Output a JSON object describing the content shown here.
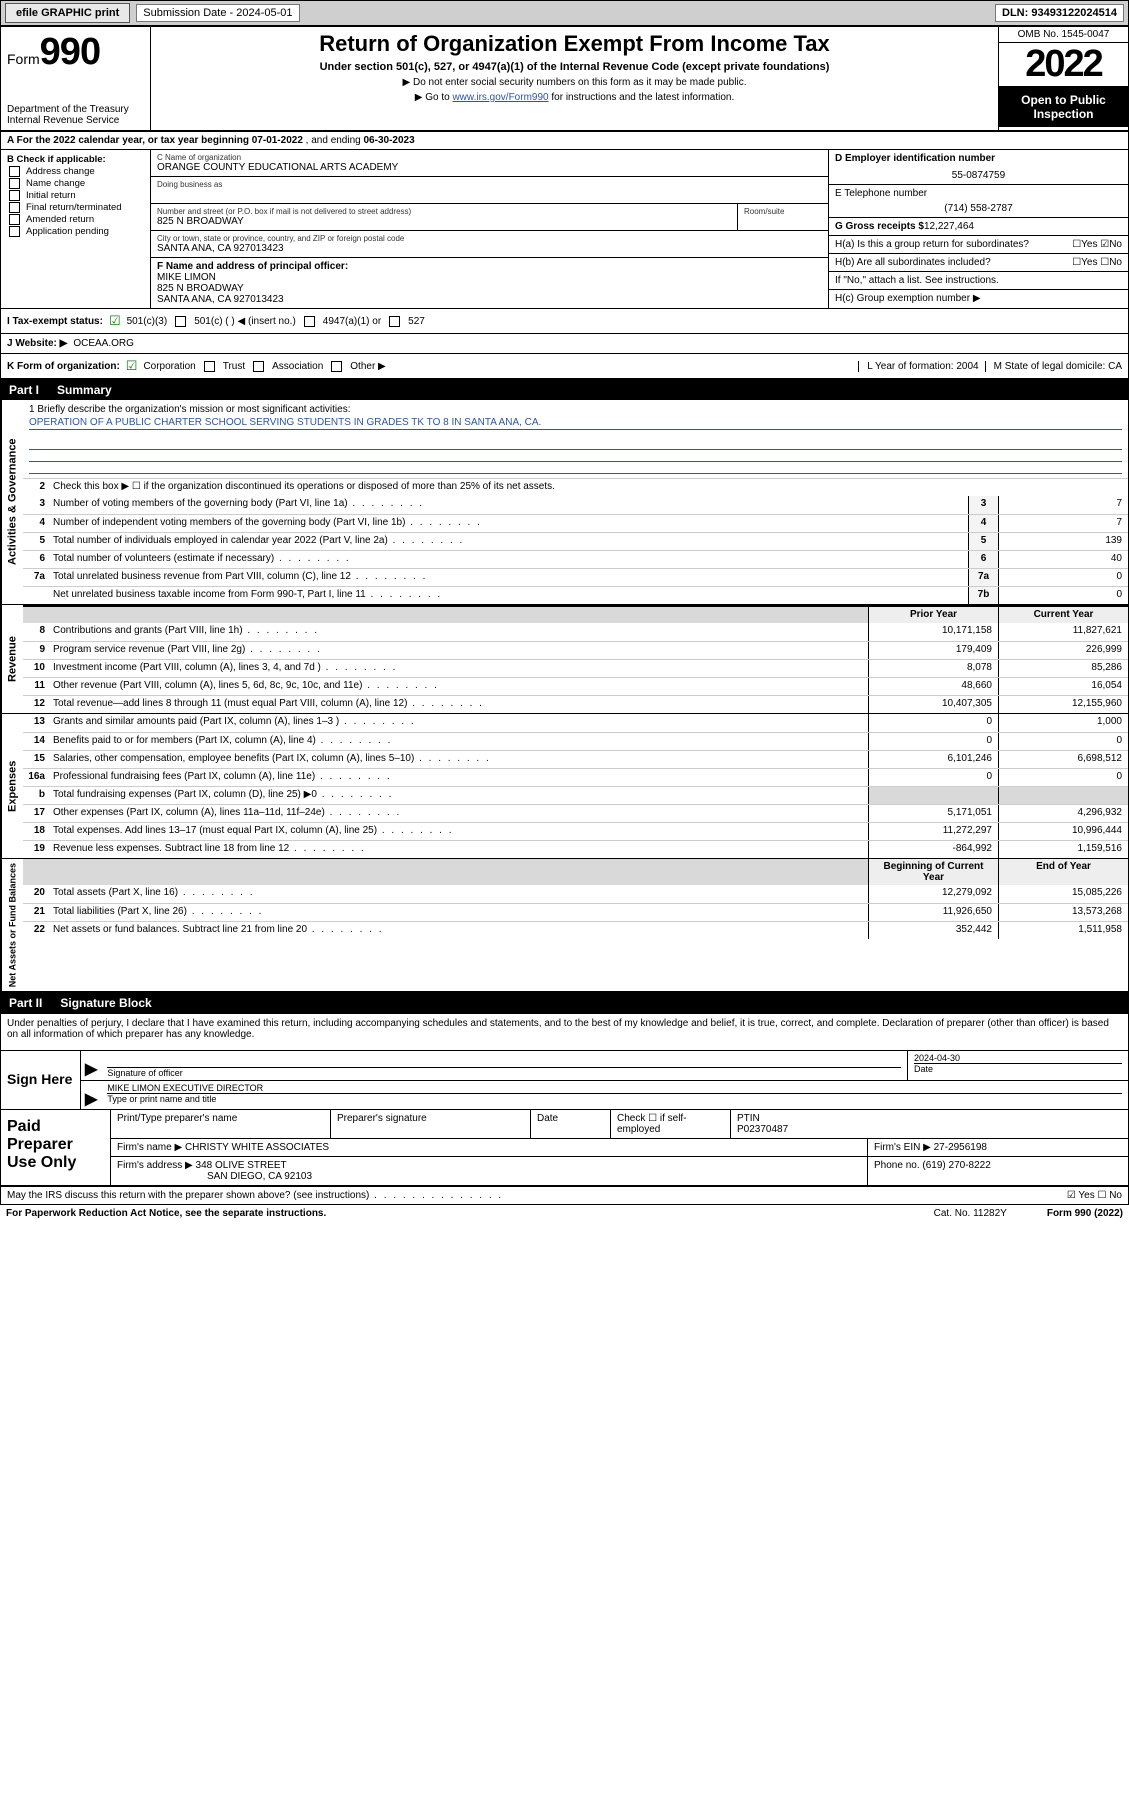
{
  "topbar": {
    "efile": "efile GRAPHIC print",
    "sub_label": "Submission Date - 2024-05-01",
    "dln": "DLN: 93493122024514"
  },
  "hdr": {
    "form_small": "Form",
    "form_big": "990",
    "dept": "Department of the Treasury",
    "irs": "Internal Revenue Service",
    "title": "Return of Organization Exempt From Income Tax",
    "sub": "Under section 501(c), 527, or 4947(a)(1) of the Internal Revenue Code (except private foundations)",
    "note1": "▶ Do not enter social security numbers on this form as it may be made public.",
    "note2_pre": "▶ Go to ",
    "note2_link": "www.irs.gov/Form990",
    "note2_post": " for instructions and the latest information.",
    "omb": "OMB No. 1545-0047",
    "year": "2022",
    "open": "Open to Public Inspection"
  },
  "rowA": {
    "text_pre": "A For the 2022 calendar year, or tax year beginning ",
    "d1": "07-01-2022",
    "mid": " , and ending ",
    "d2": "06-30-2023"
  },
  "colB": {
    "hdr": "B Check if applicable:",
    "items": [
      "Address change",
      "Name change",
      "Initial return",
      "Final return/terminated",
      "Amended return",
      "Application pending"
    ]
  },
  "colC": {
    "c_lbl": "C Name of organization",
    "c_val": "ORANGE COUNTY EDUCATIONAL ARTS ACADEMY",
    "dba_lbl": "Doing business as",
    "addr_lbl": "Number and street (or P.O. box if mail is not delivered to street address)",
    "room_lbl": "Room/suite",
    "addr_val": "825 N BROADWAY",
    "city_lbl": "City or town, state or province, country, and ZIP or foreign postal code",
    "city_val": "SANTA ANA, CA  927013423",
    "f_lbl": "F Name and address of principal officer:",
    "f_name": "MIKE LIMON",
    "f_addr1": "825 N BROADWAY",
    "f_addr2": "SANTA ANA, CA  927013423"
  },
  "colR": {
    "d_lbl": "D Employer identification number",
    "d_val": "55-0874759",
    "e_lbl": "E Telephone number",
    "e_val": "(714) 558-2787",
    "g_lbl": "G Gross receipts $",
    "g_val": "12,227,464",
    "ha_lbl": "H(a)  Is this a group return for subordinates?",
    "ha_yn": "☐Yes ☑No",
    "hb_lbl": "H(b)  Are all subordinates included?",
    "hb_yn": "☐Yes ☐No",
    "hb_note": "If \"No,\" attach a list. See instructions.",
    "hc_lbl": "H(c)  Group exemption number ▶"
  },
  "rowI": {
    "lblI": "I   Tax-exempt status:",
    "c5013": "501(c)(3)",
    "c501": "501(c) (   ) ◀ (insert no.)",
    "c4947": "4947(a)(1) or",
    "c527": "527",
    "lblJ": "J   Website: ▶",
    "site": "OCEAA.ORG"
  },
  "rowK": {
    "lbl": "K Form of organization:",
    "corp": "Corporation",
    "trust": "Trust",
    "assoc": "Association",
    "other": "Other ▶",
    "L": "L Year of formation: 2004",
    "M": "M State of legal domicile: CA"
  },
  "part1": {
    "pt": "Part I",
    "ttl": "Summary"
  },
  "mission": {
    "lbl": "1   Briefly describe the organization's mission or most significant activities:",
    "val": "OPERATION OF A PUBLIC CHARTER SCHOOL SERVING STUDENTS IN GRADES TK TO 8 IN SANTA ANA, CA."
  },
  "gov": {
    "side": "Activities & Governance",
    "l2": "Check this box ▶ ☐  if the organization discontinued its operations or disposed of more than 25% of its net assets.",
    "rows": [
      {
        "n": "3",
        "d": "Number of voting members of the governing body (Part VI, line 1a)",
        "b": "3",
        "v": "7"
      },
      {
        "n": "4",
        "d": "Number of independent voting members of the governing body (Part VI, line 1b)",
        "b": "4",
        "v": "7"
      },
      {
        "n": "5",
        "d": "Total number of individuals employed in calendar year 2022 (Part V, line 2a)",
        "b": "5",
        "v": "139"
      },
      {
        "n": "6",
        "d": "Total number of volunteers (estimate if necessary)",
        "b": "6",
        "v": "40"
      },
      {
        "n": "7a",
        "d": "Total unrelated business revenue from Part VIII, column (C), line 12",
        "b": "7a",
        "v": "0"
      },
      {
        "n": "",
        "d": "Net unrelated business taxable income from Form 990-T, Part I, line 11",
        "b": "7b",
        "v": "0"
      }
    ]
  },
  "twocol_hdr": {
    "p": "Prior Year",
    "c": "Current Year"
  },
  "rev": {
    "side": "Revenue",
    "rows": [
      {
        "n": "8",
        "d": "Contributions and grants (Part VIII, line 1h)",
        "p": "10,171,158",
        "c": "11,827,621"
      },
      {
        "n": "9",
        "d": "Program service revenue (Part VIII, line 2g)",
        "p": "179,409",
        "c": "226,999"
      },
      {
        "n": "10",
        "d": "Investment income (Part VIII, column (A), lines 3, 4, and 7d )",
        "p": "8,078",
        "c": "85,286"
      },
      {
        "n": "11",
        "d": "Other revenue (Part VIII, column (A), lines 5, 6d, 8c, 9c, 10c, and 11e)",
        "p": "48,660",
        "c": "16,054"
      },
      {
        "n": "12",
        "d": "Total revenue—add lines 8 through 11 (must equal Part VIII, column (A), line 12)",
        "p": "10,407,305",
        "c": "12,155,960"
      }
    ]
  },
  "exp": {
    "side": "Expenses",
    "rows": [
      {
        "n": "13",
        "d": "Grants and similar amounts paid (Part IX, column (A), lines 1–3 )",
        "p": "0",
        "c": "1,000"
      },
      {
        "n": "14",
        "d": "Benefits paid to or for members (Part IX, column (A), line 4)",
        "p": "0",
        "c": "0"
      },
      {
        "n": "15",
        "d": "Salaries, other compensation, employee benefits (Part IX, column (A), lines 5–10)",
        "p": "6,101,246",
        "c": "6,698,512"
      },
      {
        "n": "16a",
        "d": "Professional fundraising fees (Part IX, column (A), line 11e)",
        "p": "0",
        "c": "0"
      },
      {
        "n": "b",
        "d": "Total fundraising expenses (Part IX, column (D), line 25) ▶0",
        "p": "",
        "c": "",
        "gray": true
      },
      {
        "n": "17",
        "d": "Other expenses (Part IX, column (A), lines 11a–11d, 11f–24e)",
        "p": "5,171,051",
        "c": "4,296,932"
      },
      {
        "n": "18",
        "d": "Total expenses. Add lines 13–17 (must equal Part IX, column (A), line 25)",
        "p": "11,272,297",
        "c": "10,996,444"
      },
      {
        "n": "19",
        "d": "Revenue less expenses. Subtract line 18 from line 12",
        "p": "-864,992",
        "c": "1,159,516"
      }
    ]
  },
  "na_hdr": {
    "p": "Beginning of Current Year",
    "c": "End of Year"
  },
  "na": {
    "side": "Net Assets or Fund Balances",
    "rows": [
      {
        "n": "20",
        "d": "Total assets (Part X, line 16)",
        "p": "12,279,092",
        "c": "15,085,226"
      },
      {
        "n": "21",
        "d": "Total liabilities (Part X, line 26)",
        "p": "11,926,650",
        "c": "13,573,268"
      },
      {
        "n": "22",
        "d": "Net assets or fund balances. Subtract line 21 from line 20",
        "p": "352,442",
        "c": "1,511,958"
      }
    ]
  },
  "part2": {
    "pt": "Part II",
    "ttl": "Signature Block"
  },
  "sigtxt": "Under penalties of perjury, I declare that I have examined this return, including accompanying schedules and statements, and to the best of my knowledge and belief, it is true, correct, and complete. Declaration of preparer (other than officer) is based on all information of which preparer has any knowledge.",
  "sign": {
    "here": "Sign Here",
    "sig_lbl": "Signature of officer",
    "date_lbl": "Date",
    "date_val": "2024-04-30",
    "name": "MIKE LIMON  EXECUTIVE DIRECTOR",
    "name_lbl": "Type or print name and title"
  },
  "paid": {
    "hdr": "Paid Preparer Use Only",
    "pt_lbl": "Print/Type preparer's name",
    "ps_lbl": "Preparer's signature",
    "dt_lbl": "Date",
    "chk_lbl": "Check ☐ if self-employed",
    "ptin_lbl": "PTIN",
    "ptin_val": "P02370487",
    "firm_lbl": "Firm's name    ▶",
    "firm_val": "CHRISTY WHITE ASSOCIATES",
    "ein_lbl": "Firm's EIN ▶",
    "ein_val": "27-2956198",
    "addr_lbl": "Firm's address ▶",
    "addr_val1": "348 OLIVE STREET",
    "addr_val2": "SAN DIEGO, CA  92103",
    "ph_lbl": "Phone no.",
    "ph_val": "(619) 270-8222"
  },
  "footer": {
    "q": "May the IRS discuss this return with the preparer shown above? (see instructions)",
    "yn": "☑ Yes  ☐ No",
    "pra": "For Paperwork Reduction Act Notice, see the separate instructions.",
    "cat": "Cat. No. 11282Y",
    "form": "Form 990 (2022)"
  }
}
